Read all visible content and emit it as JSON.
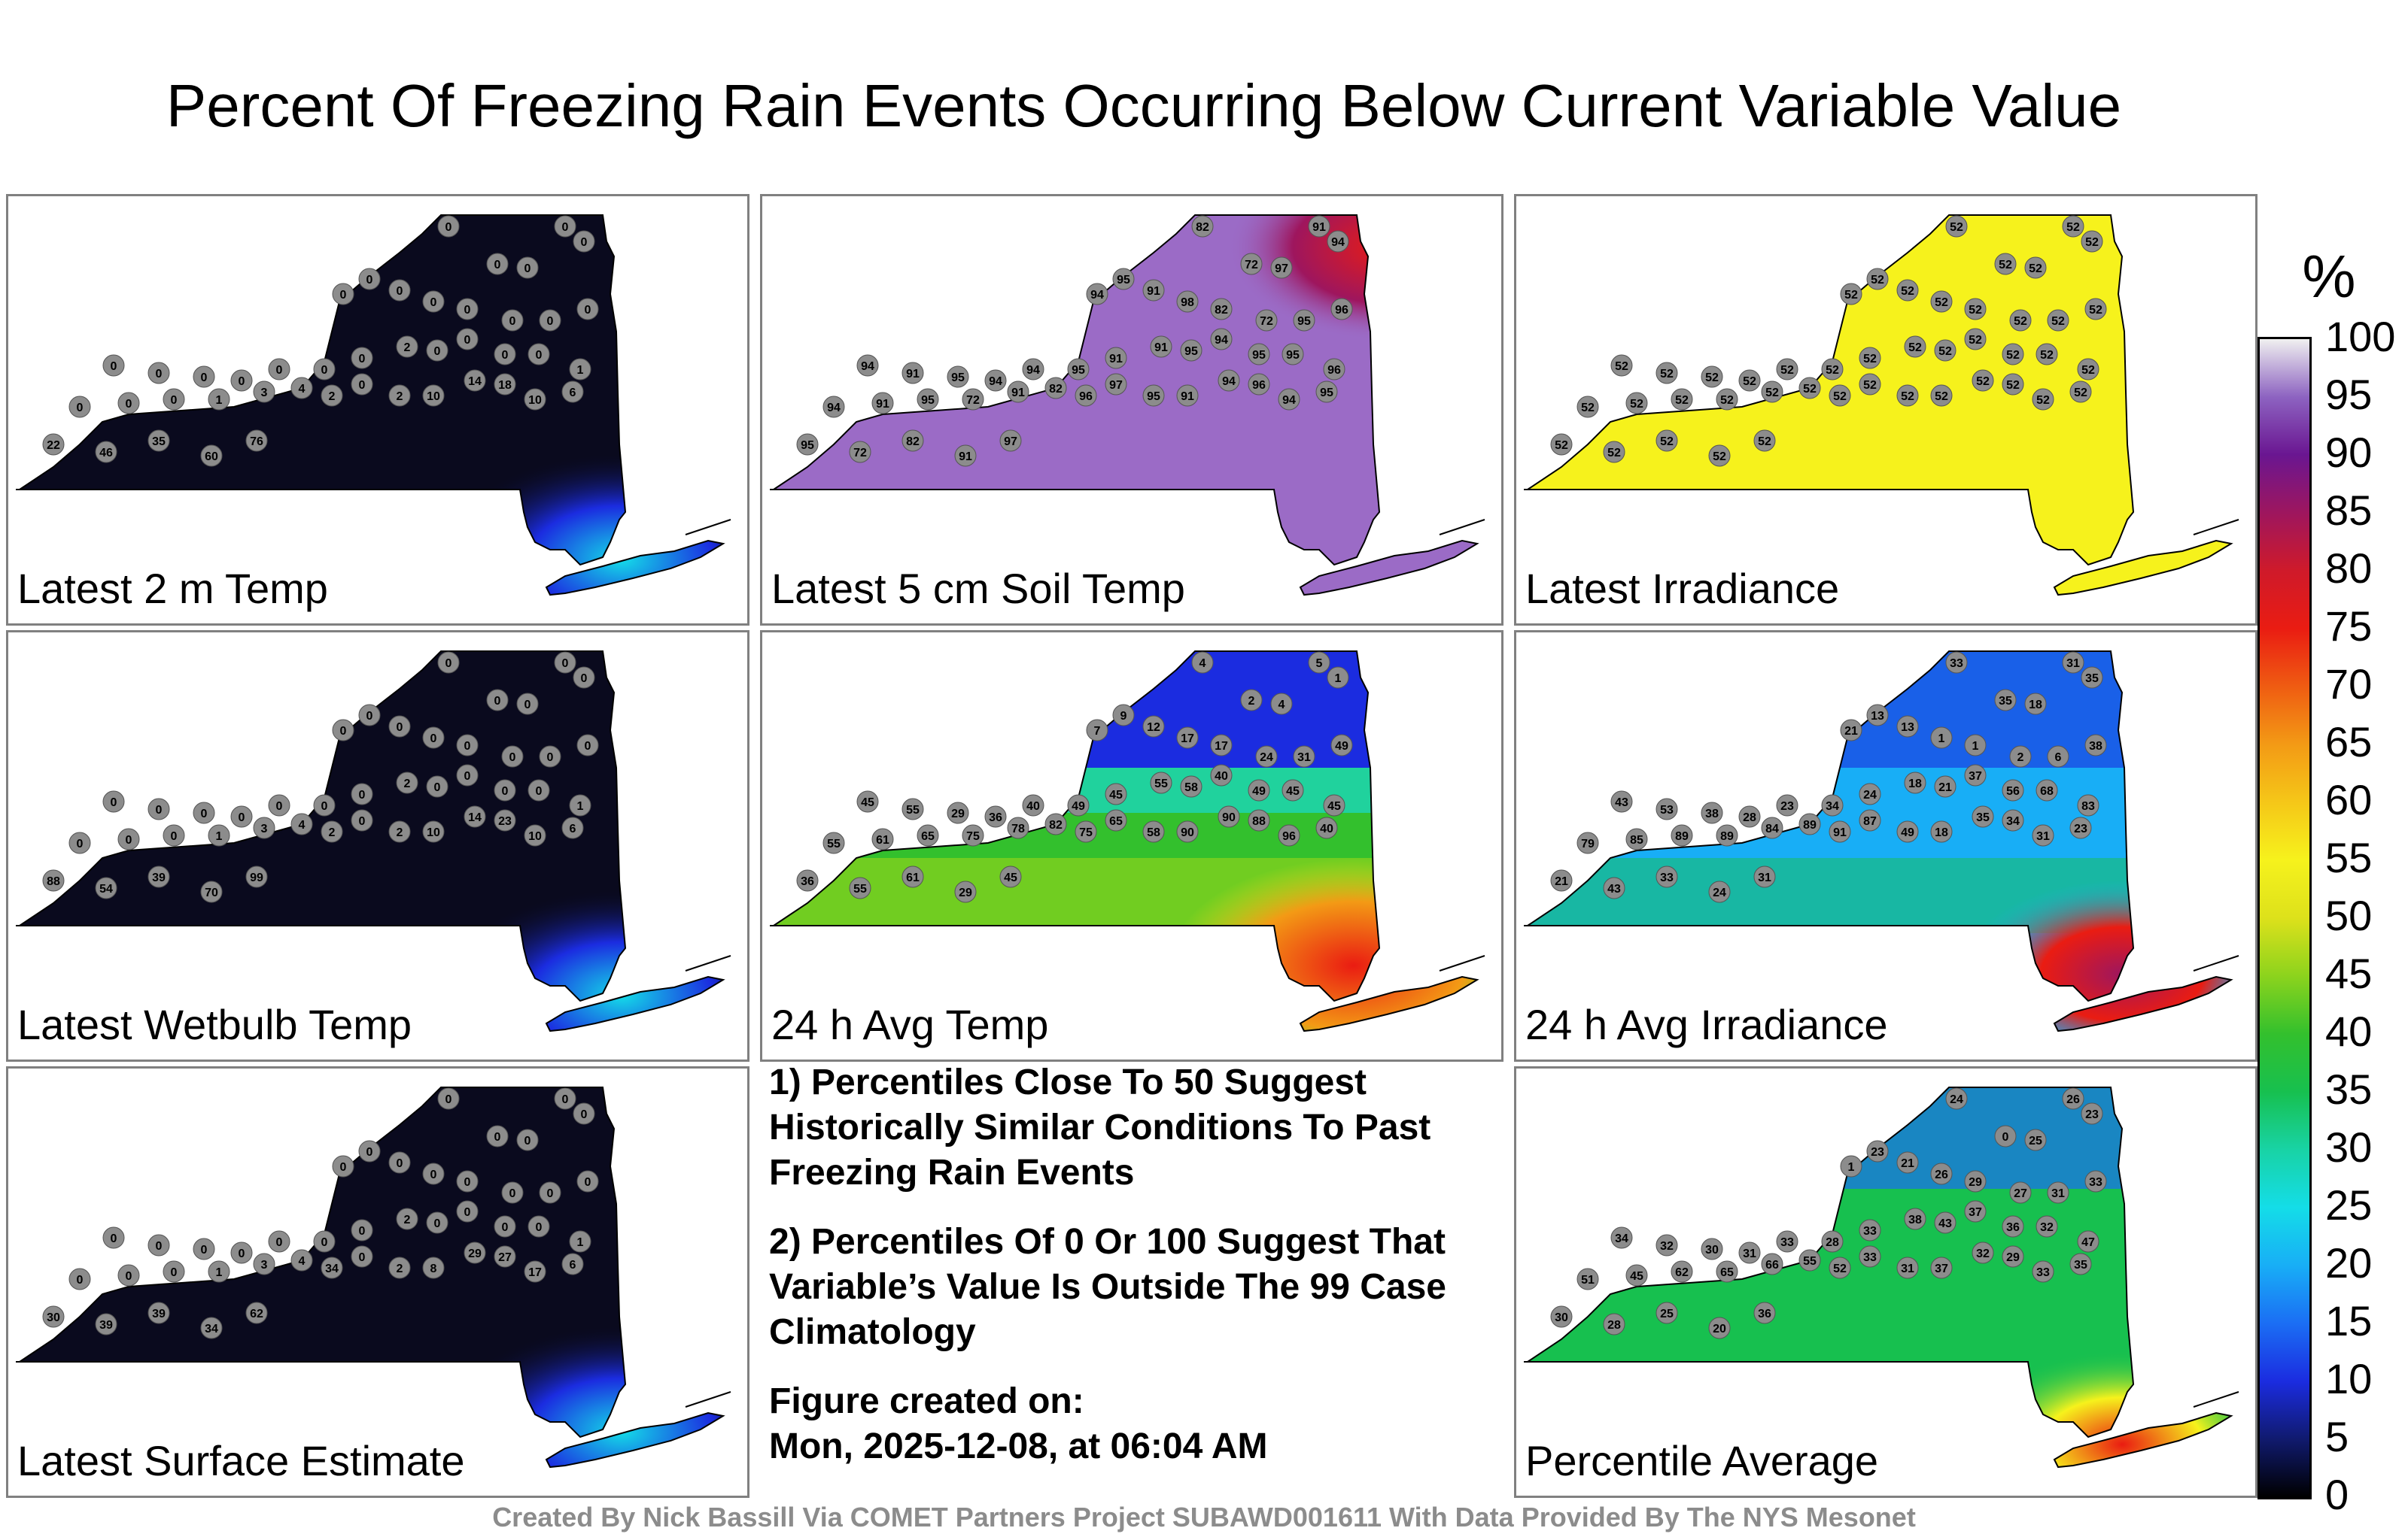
{
  "title": "Percent Of Freezing Rain Events Occurring Below Current Variable Value",
  "panels": [
    {
      "label": "Latest 2 m Temp",
      "scheme": "cold",
      "stations": [
        "0",
        "0",
        "0",
        "0",
        "0",
        "0",
        "0",
        "0",
        "0",
        "0",
        "0",
        "0",
        "0",
        "0",
        "0",
        "0",
        "0",
        "0",
        "0",
        "0",
        "2",
        "0",
        "0",
        "0",
        "0",
        "1",
        "0",
        "0",
        "0",
        "1",
        "3",
        "4",
        "2",
        "0",
        "2",
        "10",
        "14",
        "18",
        "10",
        "6",
        "22",
        "46",
        "35",
        "60",
        "76"
      ]
    },
    {
      "label": "Latest 5 cm Soil Temp",
      "scheme": "soil",
      "stations": [
        "82",
        "91",
        "94",
        "72",
        "97",
        "94",
        "95",
        "91",
        "98",
        "82",
        "72",
        "95",
        "96",
        "94",
        "91",
        "95",
        "94",
        "94",
        "95",
        "91",
        "91",
        "95",
        "94",
        "95",
        "95",
        "96",
        "94",
        "91",
        "95",
        "72",
        "91",
        "82",
        "96",
        "97",
        "95",
        "91",
        "94",
        "96",
        "94",
        "95",
        "95",
        "72",
        "82",
        "91",
        "97"
      ]
    },
    {
      "label": "Latest Irradiance",
      "scheme": "irr",
      "stations": [
        "52",
        "52",
        "52",
        "52",
        "52",
        "52",
        "52",
        "52",
        "52",
        "52",
        "52",
        "52",
        "52",
        "52",
        "52",
        "52",
        "52",
        "52",
        "52",
        "52",
        "52",
        "52",
        "52",
        "52",
        "52",
        "52",
        "52",
        "52",
        "52",
        "52",
        "52",
        "52",
        "52",
        "52",
        "52",
        "52",
        "52",
        "52",
        "52",
        "52",
        "52",
        "52",
        "52",
        "52",
        "52"
      ]
    },
    {
      "label": "Latest Wetbulb Temp",
      "scheme": "cold",
      "stations": [
        "0",
        "0",
        "0",
        "0",
        "0",
        "0",
        "0",
        "0",
        "0",
        "0",
        "0",
        "0",
        "0",
        "0",
        "0",
        "0",
        "0",
        "0",
        "0",
        "0",
        "2",
        "0",
        "0",
        "0",
        "0",
        "1",
        "0",
        "0",
        "0",
        "1",
        "3",
        "4",
        "2",
        "0",
        "2",
        "10",
        "14",
        "23",
        "10",
        "6",
        "88",
        "54",
        "39",
        "70",
        "99"
      ]
    },
    {
      "label": "24 h Avg Temp",
      "scheme": "avgtemp",
      "stations": [
        "4",
        "5",
        "1",
        "2",
        "4",
        "7",
        "9",
        "12",
        "17",
        "17",
        "24",
        "31",
        "49",
        "45",
        "55",
        "29",
        "36",
        "40",
        "49",
        "45",
        "55",
        "58",
        "40",
        "49",
        "45",
        "45",
        "55",
        "61",
        "65",
        "75",
        "78",
        "82",
        "75",
        "65",
        "58",
        "90",
        "90",
        "88",
        "96",
        "40",
        "36",
        "55",
        "61",
        "29",
        "45"
      ]
    },
    {
      "label": "24 h Avg Irradiance",
      "scheme": "avgirr",
      "stations": [
        "33",
        "31",
        "35",
        "35",
        "18",
        "21",
        "13",
        "13",
        "1",
        "1",
        "2",
        "6",
        "38",
        "43",
        "53",
        "38",
        "28",
        "23",
        "34",
        "24",
        "18",
        "21",
        "37",
        "56",
        "68",
        "83",
        "79",
        "85",
        "89",
        "89",
        "84",
        "89",
        "91",
        "87",
        "49",
        "18",
        "35",
        "34",
        "31",
        "23",
        "21",
        "43",
        "33",
        "24",
        "31"
      ]
    },
    {
      "label": "Latest Surface Estimate",
      "scheme": "cold",
      "stations": [
        "0",
        "0",
        "0",
        "0",
        "0",
        "0",
        "0",
        "0",
        "0",
        "0",
        "0",
        "0",
        "0",
        "0",
        "0",
        "0",
        "0",
        "0",
        "0",
        "0",
        "2",
        "0",
        "0",
        "0",
        "0",
        "1",
        "0",
        "0",
        "0",
        "1",
        "3",
        "4",
        "34",
        "0",
        "2",
        "8",
        "29",
        "27",
        "17",
        "6",
        "30",
        "39",
        "39",
        "34",
        "62"
      ]
    },
    {
      "label": "Percentile Average",
      "scheme": "avg",
      "stations": [
        "24",
        "26",
        "23",
        "0",
        "25",
        "1",
        "23",
        "21",
        "26",
        "29",
        "27",
        "31",
        "33",
        "34",
        "32",
        "30",
        "31",
        "33",
        "28",
        "33",
        "38",
        "43",
        "37",
        "36",
        "32",
        "47",
        "51",
        "45",
        "62",
        "65",
        "66",
        "55",
        "52",
        "33",
        "31",
        "37",
        "32",
        "29",
        "33",
        "35",
        "30",
        "28",
        "25",
        "20",
        "36"
      ]
    }
  ],
  "notes": [
    "1) Percentiles Close To 50 Suggest Historically Similar Conditions To Past Freezing Rain Events",
    "2) Percentiles Of 0 Or 100 Suggest That Variable’s Value Is Outside The 99 Case Climatology"
  ],
  "created_label": "Figure created on:",
  "created_value": "Mon, 2025-12-08, at 06:04 AM",
  "colorbar": {
    "unit": "%",
    "ticks": [
      "100",
      "95",
      "90",
      "85",
      "80",
      "75",
      "70",
      "65",
      "60",
      "55",
      "50",
      "45",
      "40",
      "35",
      "30",
      "25",
      "20",
      "15",
      "10",
      "5",
      "0"
    ]
  },
  "footer": "Created By Nick Bassill Via COMET Partners Project SUBAWD001611 With Data Provided By The NYS Mesonet"
}
